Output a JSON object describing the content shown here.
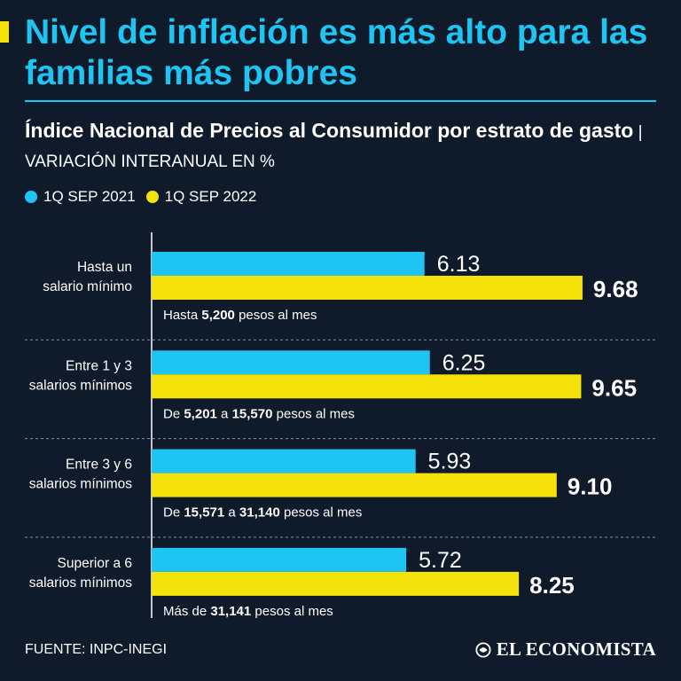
{
  "header": {
    "title": "Nivel de inflación es más alto para las familias más pobres",
    "subtitle_strong": "Índice Nacional de Precios al Consumidor por estrato de gasto",
    "subtitle_separator": " | ",
    "subtitle_unit": "VARIACIÓN INTERANUAL EN %"
  },
  "legend": [
    {
      "label": "1Q SEP 2021",
      "color": "#1fc5f2"
    },
    {
      "label": "1Q SEP 2022",
      "color": "#f5e20b"
    }
  ],
  "chart_data": {
    "type": "bar",
    "orientation": "horizontal",
    "title": "Índice Nacional de Precios al Consumidor por estrato de gasto",
    "xlabel": "VARIACIÓN INTERANUAL EN %",
    "xlim": [
      0,
      10.5
    ],
    "categories": [
      {
        "label_lines": [
          "Hasta un",
          "salario mínimo"
        ],
        "range_note": [
          {
            "t": "Hasta ",
            "b": false
          },
          {
            "t": "5,200",
            "b": true
          },
          {
            "t": " pesos al mes",
            "b": false
          }
        ]
      },
      {
        "label_lines": [
          "Entre 1 y 3",
          "salarios mínimos"
        ],
        "range_note": [
          {
            "t": "De ",
            "b": false
          },
          {
            "t": "5,201",
            "b": true
          },
          {
            "t": " a ",
            "b": false
          },
          {
            "t": "15,570",
            "b": true
          },
          {
            "t": " pesos al mes",
            "b": false
          }
        ]
      },
      {
        "label_lines": [
          "Entre 3 y 6",
          "salarios mínimos"
        ],
        "range_note": [
          {
            "t": "De ",
            "b": false
          },
          {
            "t": "15,571",
            "b": true
          },
          {
            "t": " a ",
            "b": false
          },
          {
            "t": "31,140",
            "b": true
          },
          {
            "t": " pesos al mes",
            "b": false
          }
        ]
      },
      {
        "label_lines": [
          "Superior a 6",
          "salarios mínimos"
        ],
        "range_note": [
          {
            "t": "Más de ",
            "b": false
          },
          {
            "t": "31,141",
            "b": true
          },
          {
            "t": " pesos al mes",
            "b": false
          }
        ]
      }
    ],
    "series": [
      {
        "name": "1Q SEP 2021",
        "color": "#1fc5f2",
        "values": [
          6.13,
          6.25,
          5.93,
          5.72
        ],
        "labels": [
          "6.13",
          "6.25",
          "5.93",
          "5.72"
        ]
      },
      {
        "name": "1Q SEP 2022",
        "color": "#f5e20b",
        "values": [
          9.68,
          9.65,
          9.1,
          8.25
        ],
        "labels": [
          "9.68",
          "9.65",
          "9.10",
          "8.25"
        ]
      }
    ]
  },
  "footer": {
    "source": "FUENTE: INPC-INEGI",
    "brand": "EL ECONOMISTA"
  }
}
